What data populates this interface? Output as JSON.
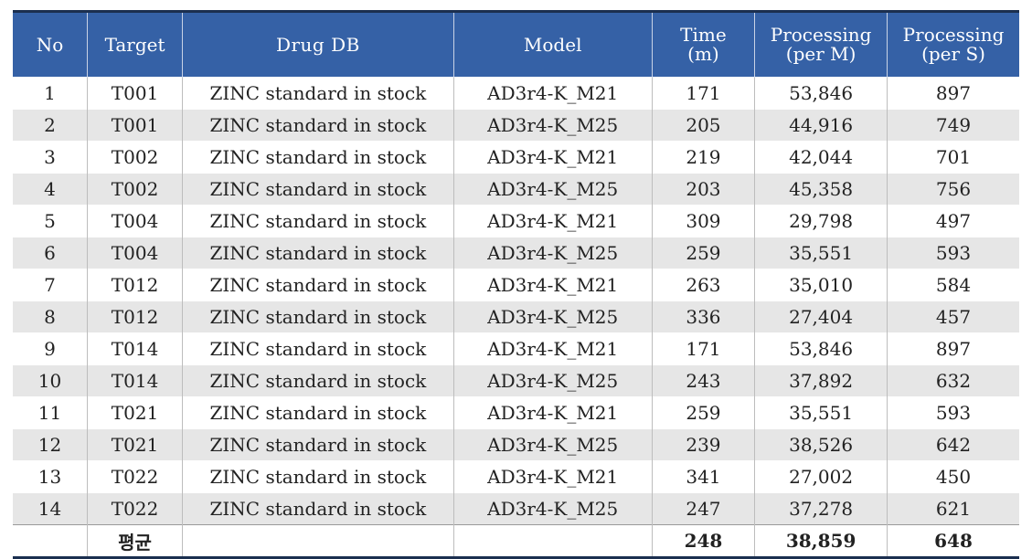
{
  "table": {
    "headers": {
      "no": "No",
      "target": "Target",
      "drug_db": "Drug DB",
      "model": "Model",
      "time_line1": "Time",
      "time_line2": "(m)",
      "per_m_line1": "Processing",
      "per_m_line2": "(per M)",
      "per_s_line1": "Processing",
      "per_s_line2": "(per S)"
    },
    "rows": [
      {
        "no": "1",
        "target": "T001",
        "drug_db": "ZINC standard in stock",
        "model": "AD3r4-K_M21",
        "time": "171",
        "per_m": "53,846",
        "per_s": "897"
      },
      {
        "no": "2",
        "target": "T001",
        "drug_db": "ZINC standard in stock",
        "model": "AD3r4-K_M25",
        "time": "205",
        "per_m": "44,916",
        "per_s": "749"
      },
      {
        "no": "3",
        "target": "T002",
        "drug_db": "ZINC standard in stock",
        "model": "AD3r4-K_M21",
        "time": "219",
        "per_m": "42,044",
        "per_s": "701"
      },
      {
        "no": "4",
        "target": "T002",
        "drug_db": "ZINC standard in stock",
        "model": "AD3r4-K_M25",
        "time": "203",
        "per_m": "45,358",
        "per_s": "756"
      },
      {
        "no": "5",
        "target": "T004",
        "drug_db": "ZINC standard in stock",
        "model": "AD3r4-K_M21",
        "time": "309",
        "per_m": "29,798",
        "per_s": "497"
      },
      {
        "no": "6",
        "target": "T004",
        "drug_db": "ZINC standard in stock",
        "model": "AD3r4-K_M25",
        "time": "259",
        "per_m": "35,551",
        "per_s": "593"
      },
      {
        "no": "7",
        "target": "T012",
        "drug_db": "ZINC standard in stock",
        "model": "AD3r4-K_M21",
        "time": "263",
        "per_m": "35,010",
        "per_s": "584"
      },
      {
        "no": "8",
        "target": "T012",
        "drug_db": "ZINC standard in stock",
        "model": "AD3r4-K_M25",
        "time": "336",
        "per_m": "27,404",
        "per_s": "457"
      },
      {
        "no": "9",
        "target": "T014",
        "drug_db": "ZINC standard in stock",
        "model": "AD3r4-K_M21",
        "time": "171",
        "per_m": "53,846",
        "per_s": "897"
      },
      {
        "no": "10",
        "target": "T014",
        "drug_db": "ZINC standard in stock",
        "model": "AD3r4-K_M25",
        "time": "243",
        "per_m": "37,892",
        "per_s": "632"
      },
      {
        "no": "11",
        "target": "T021",
        "drug_db": "ZINC standard in stock",
        "model": "AD3r4-K_M21",
        "time": "259",
        "per_m": "35,551",
        "per_s": "593"
      },
      {
        "no": "12",
        "target": "T021",
        "drug_db": "ZINC standard in stock",
        "model": "AD3r4-K_M25",
        "time": "239",
        "per_m": "38,526",
        "per_s": "642"
      },
      {
        "no": "13",
        "target": "T022",
        "drug_db": "ZINC standard in stock",
        "model": "AD3r4-K_M21",
        "time": "341",
        "per_m": "27,002",
        "per_s": "450"
      },
      {
        "no": "14",
        "target": "T022",
        "drug_db": "ZINC standard in stock",
        "model": "AD3r4-K_M25",
        "time": "247",
        "per_m": "37,278",
        "per_s": "621"
      }
    ],
    "footer": {
      "label": "평균",
      "time": "248",
      "per_m": "38,859",
      "per_s": "648"
    }
  }
}
